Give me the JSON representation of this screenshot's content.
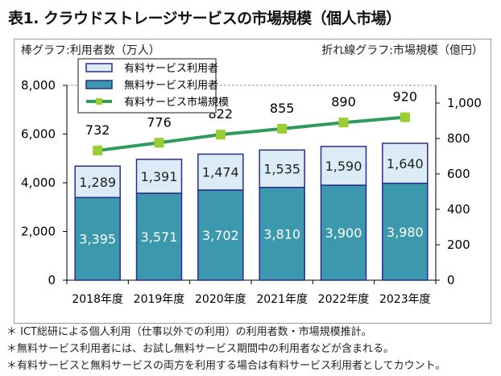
{
  "title": "表1. クラウドストレージサービスの市場規模（個人市場）",
  "notes": [
    "＊ ICT総研による個人利用（仕事以外での利用）の利用者数・市場規模推計。",
    "＊無料サービス利用者には、お試し無料サービス期間中の利用者などが含まれる。",
    "＊有料サービスと無料サービスの両方を利用する場合は有料サービス利用者としてカウント。"
  ],
  "chart_data": {
    "type": "bar+line",
    "left_axis_label": "棒グラフ:利用者数（万人）",
    "right_axis_label": "折れ線グラフ:市場規模（億円）",
    "categories": [
      "2018年度",
      "2019年度",
      "2020年度",
      "2021年度",
      "2022年度",
      "2023年度"
    ],
    "ylim": [
      0,
      8000
    ],
    "yticks": [
      "0",
      "2,000",
      "4,000",
      "6,000",
      "8,000"
    ],
    "y2lim": [
      0,
      1100
    ],
    "y2ticks": [
      "0",
      "200",
      "400",
      "600",
      "800",
      "1,000"
    ],
    "stacked": true,
    "series": [
      {
        "name": "無料サービス利用者",
        "type": "bar",
        "color": "#3b98ad",
        "values": [
          3395,
          3571,
          3702,
          3810,
          3900,
          3980
        ],
        "labels": [
          "3,395",
          "3,571",
          "3,702",
          "3,810",
          "3,900",
          "3,980"
        ]
      },
      {
        "name": "有料サービス利用者",
        "type": "bar",
        "color": "#dcecf7",
        "values": [
          1289,
          1391,
          1474,
          1535,
          1590,
          1640
        ],
        "labels": [
          "1,289",
          "1,391",
          "1,474",
          "1,535",
          "1,590",
          "1,640"
        ]
      },
      {
        "name": "有料サービス市場規模",
        "type": "line",
        "axis": "right",
        "color": "#2f9a5a",
        "marker_color": "#9acd32",
        "values": [
          732,
          776,
          822,
          855,
          890,
          920
        ],
        "labels": [
          "732",
          "776",
          "822",
          "855",
          "890",
          "920"
        ]
      }
    ],
    "legend_order": [
      1,
      0,
      2
    ],
    "legend_position": "top-left",
    "grid": "top dashed line only"
  }
}
